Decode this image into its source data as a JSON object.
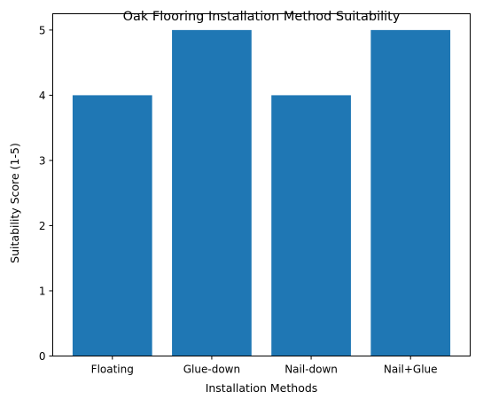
{
  "chart_data": {
    "type": "bar",
    "title": "Oak Flooring Installation Method Suitability",
    "xlabel": "Installation Methods",
    "ylabel": "Suitability Score (1-5)",
    "categories": [
      "Floating",
      "Glue-down",
      "Nail-down",
      "Nail+Glue"
    ],
    "values": [
      4,
      5,
      4,
      5
    ],
    "ylim": [
      0,
      5.25
    ],
    "yticks": [
      "0",
      "1",
      "2",
      "3",
      "4",
      "5"
    ],
    "grid": false,
    "bar_color": "#1f77b4"
  }
}
